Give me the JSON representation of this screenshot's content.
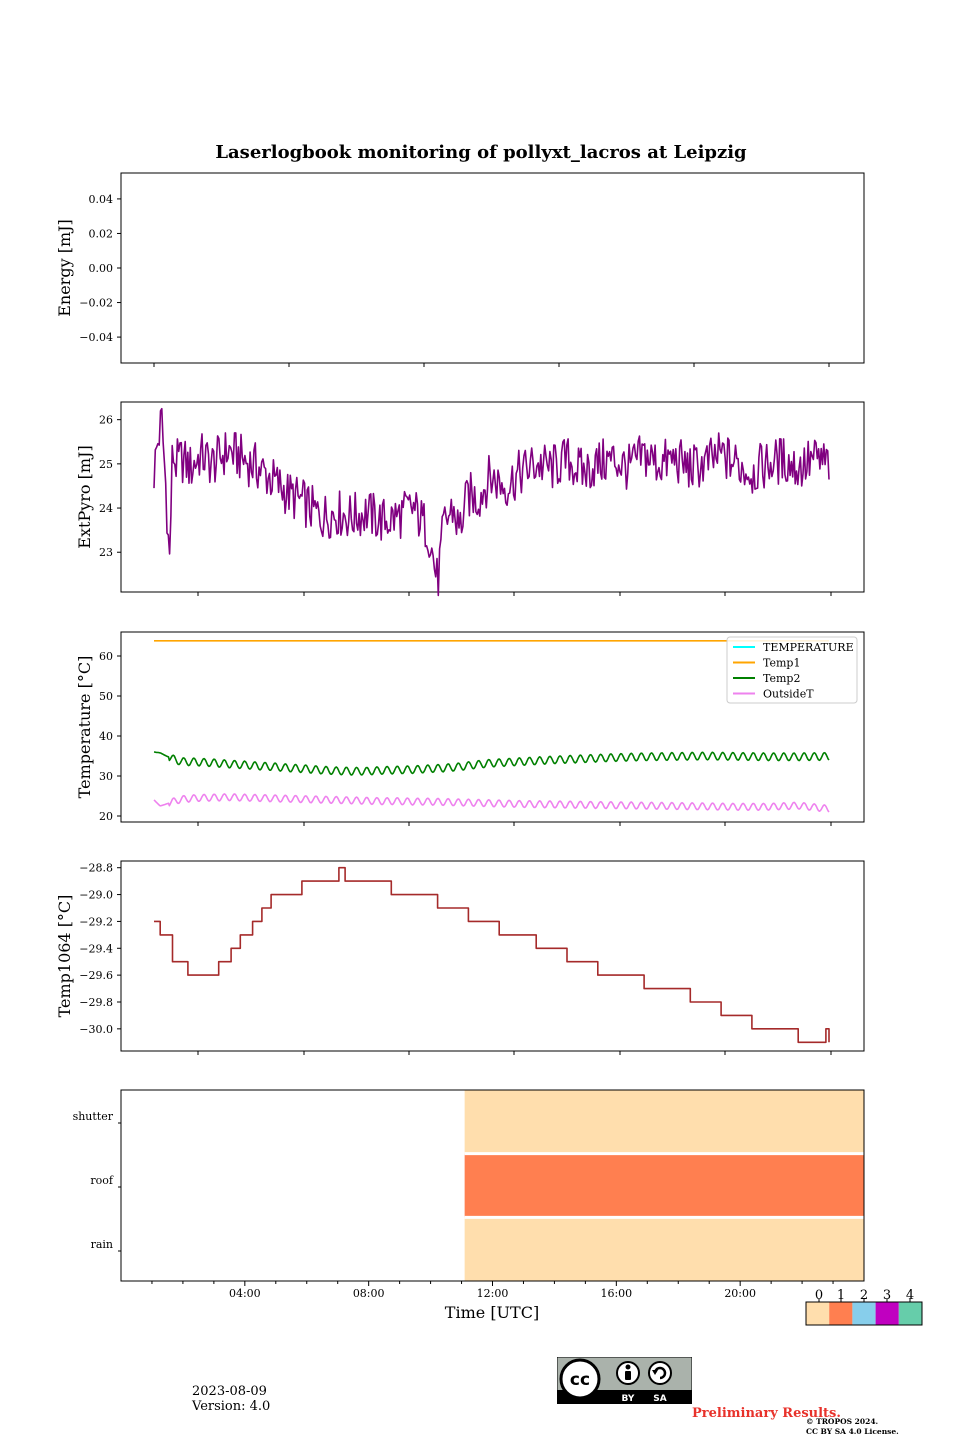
{
  "figure": {
    "title": "Laserlogbook monitoring of pollyxt_lacros at Leipzig",
    "date": "2023-08-09",
    "version": "Version: 4.0",
    "preliminary": "Preliminary Results.",
    "copyright_line1": "© TROPOS 2024.",
    "copyright_line2": "CC BY SA 4.0 License.",
    "license_badges": [
      "BY",
      "SA"
    ]
  },
  "colors": {
    "energy": "#1f77b4",
    "extpyro": "#800080",
    "temperature": "#00ffff",
    "temp1": "#ffa500",
    "temp2": "#008000",
    "outsidet": "#ee82ee",
    "temp1064": "#a52a2a",
    "status": [
      "#ffdead",
      "#ff7f50",
      "#87ceeb",
      "#c000c0",
      "#66cdaa"
    ]
  },
  "chart_data": [
    {
      "type": "line",
      "panel": "energy",
      "ylabel": "Energy [mJ]",
      "ylim": [
        -0.055,
        0.055
      ],
      "yticks": [
        0.04,
        0.02,
        0.0,
        -0.02,
        -0.04
      ],
      "ytick_labels": [
        "0.04",
        "0.02",
        "0.00",
        "−0.02",
        "−0.04"
      ],
      "series": []
    },
    {
      "type": "line",
      "panel": "extpyro",
      "ylabel": "ExtPyro [mJ]",
      "ylim": [
        22.1,
        26.4
      ],
      "yticks": [
        26,
        25,
        24,
        23
      ],
      "ytick_labels": [
        "26",
        "25",
        "24",
        "23"
      ],
      "x_hours": [
        1.1,
        1.2,
        1.35,
        1.5,
        1.6,
        1.7,
        1.8,
        2.0,
        2.3,
        2.6,
        3.0,
        3.5,
        4.0,
        4.5,
        5.0,
        5.5,
        6.0,
        6.5,
        7.0,
        7.5,
        8.0,
        8.5,
        9.0,
        9.5,
        10.0,
        10.3,
        10.5,
        10.8,
        11.0,
        11.3,
        11.6,
        12.0,
        12.5,
        13.0,
        13.5,
        14.0,
        14.5,
        15.0,
        15.5,
        16.0,
        16.5,
        17.0,
        17.5,
        18.0,
        18.5,
        19.0,
        19.5,
        20.0,
        20.5,
        21.0,
        21.5,
        22.0,
        22.5,
        23.0
      ],
      "series": [
        {
          "values": [
            24.8,
            25.4,
            26.0,
            24.3,
            22.7,
            25.3,
            25.0,
            25.1,
            24.9,
            25.2,
            25.0,
            25.3,
            25.1,
            24.9,
            24.6,
            24.3,
            24.1,
            23.8,
            23.9,
            23.8,
            23.9,
            23.7,
            23.8,
            24.0,
            23.5,
            22.3,
            23.6,
            24.0,
            23.5,
            24.3,
            24.2,
            24.7,
            24.5,
            24.8,
            25.0,
            24.9,
            25.1,
            24.8,
            25.0,
            25.1,
            24.9,
            25.2,
            25.0,
            25.1,
            24.9,
            25.0,
            25.2,
            25.0,
            24.8,
            25.0,
            25.1,
            24.9,
            25.1,
            25.0
          ]
        }
      ]
    },
    {
      "type": "line",
      "panel": "temperature",
      "ylabel": "Temperature [°C]",
      "ylim": [
        18.5,
        66
      ],
      "yticks": [
        60,
        50,
        40,
        30,
        20
      ],
      "ytick_labels": [
        "60",
        "50",
        "40",
        "30",
        "20"
      ],
      "legend_position": "top-right",
      "x_hours": [
        1.1,
        1.3,
        1.5,
        1.8,
        2.0,
        2.5,
        3.0,
        3.5,
        4.0,
        4.5,
        5.0,
        5.5,
        6.0,
        6.5,
        7.0,
        7.5,
        8.0,
        8.5,
        9.0,
        9.5,
        10.0,
        10.5,
        11.0,
        11.5,
        12.0,
        13.0,
        14.0,
        15.0,
        16.0,
        17.0,
        18.0,
        19.0,
        20.0,
        21.0,
        22.0,
        23.0
      ],
      "series": [
        {
          "name": "TEMPERATURE",
          "values": []
        },
        {
          "name": "Temp1",
          "values": [
            63.8,
            63.8,
            63.8,
            63.8,
            63.8,
            63.8,
            63.8,
            63.8,
            63.8,
            63.8,
            63.8,
            63.8,
            63.8,
            63.8,
            63.8,
            63.8,
            63.8,
            63.8,
            63.8,
            63.8,
            63.8,
            63.8,
            63.8,
            63.8,
            63.8,
            63.8,
            63.8,
            63.8,
            63.8,
            63.8,
            63.8,
            63.8,
            63.8,
            63.8,
            63.8,
            63.8
          ]
        },
        {
          "name": "Temp2",
          "values": [
            36.0,
            35.8,
            35.0,
            34.0,
            33.6,
            33.5,
            33.3,
            33.0,
            32.8,
            32.5,
            32.3,
            32.0,
            31.8,
            31.5,
            31.3,
            31.2,
            31.2,
            31.4,
            31.5,
            31.6,
            31.8,
            32.0,
            32.3,
            32.8,
            33.2,
            33.6,
            34.0,
            34.3,
            34.6,
            34.8,
            34.9,
            35.0,
            34.9,
            34.8,
            34.8,
            34.9
          ]
        },
        {
          "name": "OutsideT",
          "values": [
            24.0,
            22.5,
            23.0,
            23.8,
            24.2,
            24.5,
            24.6,
            24.7,
            24.6,
            24.5,
            24.4,
            24.3,
            24.2,
            24.1,
            24.0,
            23.9,
            23.8,
            23.7,
            23.7,
            23.6,
            23.6,
            23.5,
            23.4,
            23.3,
            23.2,
            23.0,
            22.9,
            22.8,
            22.7,
            22.6,
            22.5,
            22.4,
            22.3,
            22.3,
            22.6,
            21.8
          ]
        }
      ]
    },
    {
      "type": "line",
      "panel": "temp1064",
      "ylabel": "Temp1064 [°C]",
      "ylim": [
        -30.165,
        -28.75
      ],
      "yticks": [
        -28.8,
        -29.0,
        -29.2,
        -29.4,
        -29.6,
        -29.8,
        -30.0
      ],
      "ytick_labels": [
        "−28.8",
        "−29.0",
        "−29.2",
        "−29.4",
        "−29.6",
        "−29.8",
        "−30.0"
      ],
      "x_hours": [
        1.1,
        1.3,
        1.45,
        1.7,
        1.95,
        2.2,
        2.4,
        2.8,
        3.2,
        3.6,
        3.9,
        4.3,
        4.6,
        4.9,
        5.4,
        5.9,
        6.4,
        6.7,
        6.9,
        7.1,
        7.3,
        7.8,
        8.3,
        8.8,
        9.3,
        9.8,
        10.3,
        10.8,
        11.3,
        11.6,
        12.3,
        12.9,
        13.5,
        14.0,
        14.5,
        15.0,
        15.5,
        16.0,
        16.5,
        17.0,
        17.5,
        18.0,
        18.5,
        19.0,
        19.5,
        20.0,
        20.5,
        21.0,
        21.5,
        22.0,
        22.5,
        22.8,
        22.9,
        23.0
      ],
      "series": [
        {
          "values": [
            -29.2,
            -29.3,
            -29.3,
            -29.5,
            -29.5,
            -29.6,
            -29.6,
            -29.6,
            -29.5,
            -29.4,
            -29.3,
            -29.2,
            -29.1,
            -29.0,
            -29.0,
            -28.9,
            -28.9,
            -28.9,
            -28.9,
            -28.8,
            -28.9,
            -28.9,
            -28.9,
            -29.0,
            -29.0,
            -29.0,
            -29.1,
            -29.1,
            -29.2,
            -29.2,
            -29.3,
            -29.3,
            -29.4,
            -29.4,
            -29.5,
            -29.5,
            -29.6,
            -29.6,
            -29.6,
            -29.7,
            -29.7,
            -29.7,
            -29.8,
            -29.8,
            -29.9,
            -29.9,
            -30.0,
            -30.0,
            -30.0,
            -30.1,
            -30.1,
            -30.1,
            -30.0,
            -30.1
          ]
        }
      ]
    },
    {
      "type": "heatmap",
      "panel": "status",
      "xlabel": "Time [UTC]",
      "xlim": [
        0,
        24
      ],
      "xticks": [
        4,
        8,
        12,
        16,
        20
      ],
      "xtick_labels": [
        "04:00",
        "08:00",
        "12:00",
        "16:00",
        "20:00"
      ],
      "rows": [
        "shutter",
        "roof",
        "rain"
      ],
      "intervals": [
        {
          "row": "shutter",
          "start_hour": 11.1,
          "end_hour": 24,
          "code": 0
        },
        {
          "row": "roof",
          "start_hour": 11.1,
          "end_hour": 24,
          "code": 1
        },
        {
          "row": "rain",
          "start_hour": 11.1,
          "end_hour": 24,
          "code": 0
        }
      ],
      "colorbar_labels": [
        "0",
        "1",
        "2",
        "3",
        "4"
      ]
    }
  ]
}
